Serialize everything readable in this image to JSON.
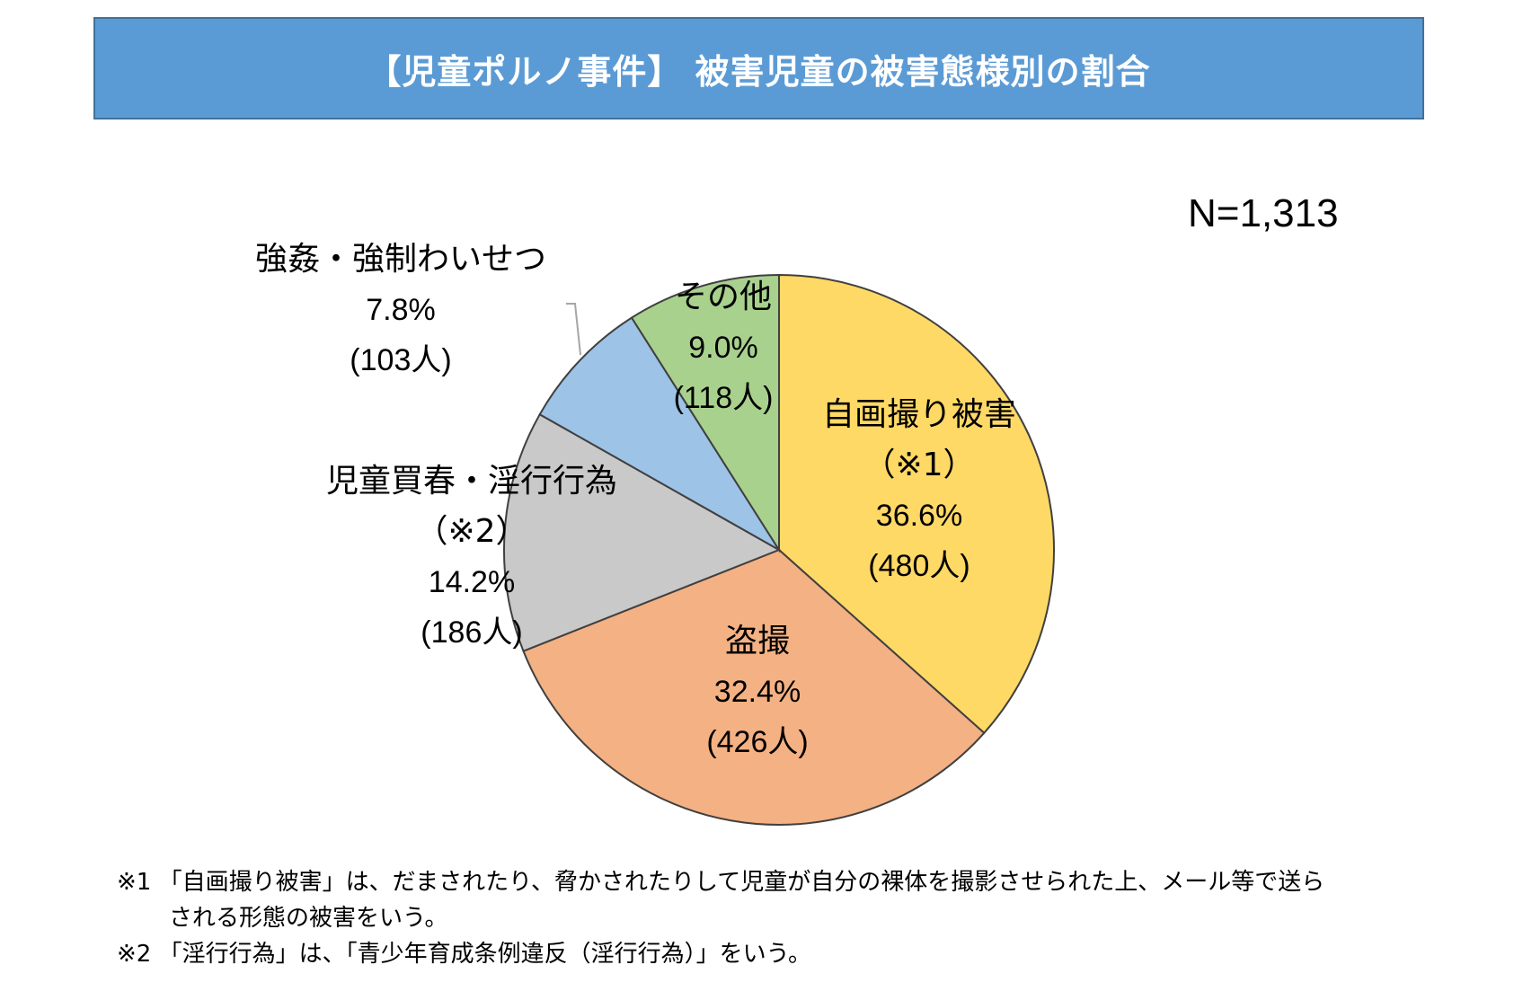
{
  "header": {
    "title": "【児童ポルノ事件】 被害児童の被害態様別の割合"
  },
  "sample_size": "N=1,313",
  "chart_data": {
    "type": "pie",
    "title": "【児童ポルノ事件】 被害児童の被害態様別の割合",
    "total_label": "N=1,313",
    "slices": [
      {
        "name": "自画撮り被害",
        "note": "（※1）",
        "percent": 36.6,
        "percent_label": "36.6%",
        "count_label": "(480人)",
        "color": "#ffd966"
      },
      {
        "name": "盗撮",
        "note": "",
        "percent": 32.4,
        "percent_label": "32.4%",
        "count_label": "(426人)",
        "color": "#f4b183"
      },
      {
        "name": "児童買春・淫行行為",
        "note": "（※2）",
        "percent": 14.2,
        "percent_label": "14.2%",
        "count_label": "(186人)",
        "color": "#c9c9c9"
      },
      {
        "name": "強姦・強制わいせつ",
        "note": "",
        "percent": 7.8,
        "percent_label": "7.8%",
        "count_label": "(103人)",
        "color": "#9dc3e6"
      },
      {
        "name": "その他",
        "note": "",
        "percent": 9.0,
        "percent_label": "9.0%",
        "count_label": "(118人)",
        "color": "#a9d18e"
      }
    ]
  },
  "footnotes": {
    "note1_line1": "※1 「自画撮り被害」は、だまされたり、脅かされたりして児童が自分の裸体を撮影させられた上、メール等で送ら",
    "note1_line2": "される形態の被害をいう。",
    "note2": "※2 「淫行行為」は、「青少年育成条例違反（淫行行為）」をいう。"
  }
}
